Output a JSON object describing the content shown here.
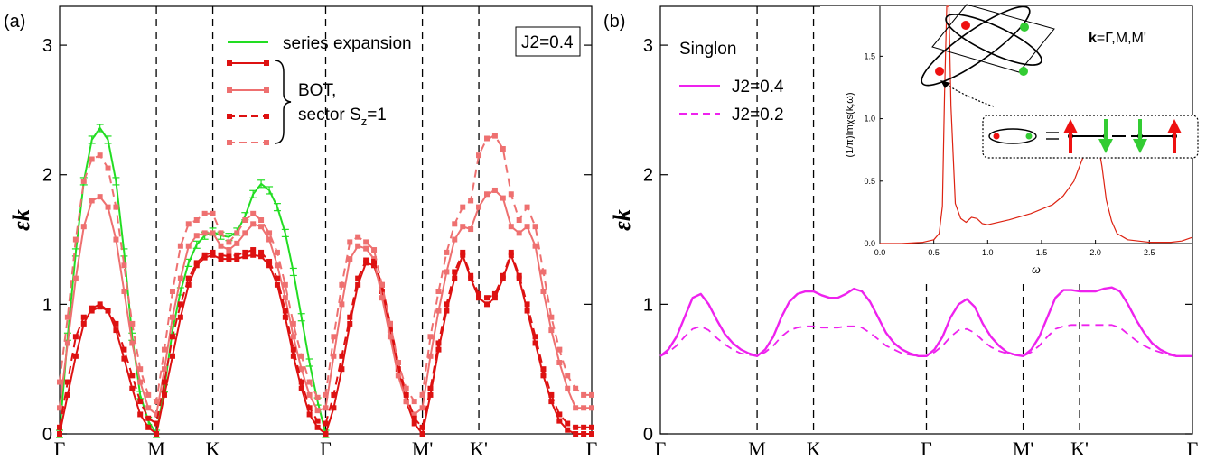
{
  "colors": {
    "green": "#22dd22",
    "red": "#dd1111",
    "pink": "#ee7070",
    "magenta": "#ee22ee",
    "inset_red": "#dd2211",
    "spin_red": "#ee1111",
    "spin_green": "#33cc33"
  },
  "chart_data": [
    {
      "type": "line",
      "panel_label": "(a)",
      "box_label": "J2=0.4",
      "ylabel": "εk",
      "ylim": [
        0,
        3.3
      ],
      "yticks": [
        "0",
        "1",
        "2",
        "3"
      ],
      "x_ticks": [
        "Γ",
        "M",
        "K",
        "Γ",
        "M'",
        "K'",
        "Γ"
      ],
      "x_tick_positions": [
        0,
        1,
        1.5833,
        2.75,
        3.75,
        4.3333,
        5.5
      ],
      "legend": {
        "series_expansion": "series expansion",
        "bot_line1": "BOT,",
        "bot_line2": "sector S",
        "bot_sub": "z",
        "bot_tail": "=1"
      },
      "series": [
        {
          "name": "series expansion",
          "x": [
            0,
            0.083,
            0.167,
            0.25,
            0.333,
            0.417,
            0.5,
            0.583,
            0.667,
            0.75,
            0.833,
            0.917,
            1,
            1.083,
            1.167,
            1.25,
            1.333,
            1.417,
            1.5,
            1.583,
            1.667,
            1.75,
            1.833,
            1.917,
            2,
            2.083,
            2.167,
            2.25,
            2.333,
            2.417,
            2.5,
            2.583,
            2.667,
            2.75
          ],
          "values": [
            0,
            0.75,
            1.4,
            1.95,
            2.27,
            2.36,
            2.27,
            1.95,
            1.4,
            0.75,
            0.3,
            0.1,
            0,
            0.35,
            0.8,
            1.1,
            1.32,
            1.46,
            1.53,
            1.56,
            1.53,
            1.52,
            1.56,
            1.68,
            1.85,
            1.93,
            1.88,
            1.75,
            1.55,
            1.25,
            0.9,
            0.55,
            0.25,
            0
          ]
        },
        {
          "name": "",
          "style": "solid-red",
          "x": [
            0,
            0.083,
            0.167,
            0.25,
            0.333,
            0.417,
            0.5,
            0.583,
            0.667,
            0.75,
            0.833,
            0.917,
            1,
            1.083,
            1.167,
            1.25,
            1.333,
            1.417,
            1.5,
            1.583,
            1.667,
            1.75,
            1.833,
            1.917,
            2,
            2.083,
            2.167,
            2.25,
            2.333,
            2.417,
            2.5,
            2.583,
            2.667,
            2.75,
            2.833,
            2.917,
            3,
            3.083,
            3.167,
            3.25,
            3.333,
            3.417,
            3.5,
            3.583,
            3.667,
            3.75,
            3.833,
            3.917,
            4,
            4.083,
            4.167,
            4.25,
            4.333,
            4.417,
            4.5,
            4.583,
            4.667,
            4.75,
            4.833,
            4.917,
            5,
            5.083,
            5.167,
            5.25,
            5.333,
            5.417,
            5.5
          ],
          "values": [
            0,
            0.3,
            0.6,
            0.85,
            0.97,
            1.0,
            0.95,
            0.8,
            0.58,
            0.35,
            0.15,
            0.05,
            0,
            0.3,
            0.6,
            0.9,
            1.15,
            1.3,
            1.36,
            1.38,
            1.35,
            1.35,
            1.35,
            1.37,
            1.38,
            1.37,
            1.3,
            1.15,
            0.9,
            0.6,
            0.35,
            0.15,
            0.05,
            0,
            0.2,
            0.5,
            0.85,
            1.15,
            1.32,
            1.3,
            1.1,
            0.8,
            0.5,
            0.25,
            0.08,
            0,
            0.3,
            0.65,
            0.95,
            1.2,
            1.38,
            1.2,
            1.05,
            1.0,
            1.05,
            1.2,
            1.38,
            1.2,
            0.95,
            0.7,
            0.45,
            0.25,
            0.1,
            0.03,
            0,
            0,
            0
          ]
        },
        {
          "name": "",
          "style": "solid-pink",
          "x": [
            0,
            0.083,
            0.167,
            0.25,
            0.333,
            0.417,
            0.5,
            0.583,
            0.667,
            0.75,
            0.833,
            0.917,
            1,
            1.083,
            1.167,
            1.25,
            1.333,
            1.417,
            1.5,
            1.583,
            1.667,
            1.75,
            1.833,
            1.917,
            2,
            2.083,
            2.167,
            2.25,
            2.333,
            2.417,
            2.5,
            2.583,
            2.667,
            2.75,
            2.833,
            2.917,
            3,
            3.083,
            3.167,
            3.25,
            3.333,
            3.417,
            3.5,
            3.583,
            3.667,
            3.75,
            3.833,
            3.917,
            4,
            4.083,
            4.167,
            4.25,
            4.333,
            4.417,
            4.5,
            4.583,
            4.667,
            4.75,
            4.833,
            4.917,
            5,
            5.083,
            5.167,
            5.25,
            5.333,
            5.417,
            5.5
          ],
          "values": [
            0.2,
            0.7,
            1.2,
            1.6,
            1.8,
            1.83,
            1.75,
            1.5,
            1.1,
            0.7,
            0.4,
            0.2,
            0.15,
            0.5,
            0.9,
            1.2,
            1.45,
            1.53,
            1.55,
            1.55,
            1.45,
            1.42,
            1.47,
            1.55,
            1.62,
            1.6,
            1.5,
            1.3,
            1.05,
            0.75,
            0.5,
            0.3,
            0.18,
            0.2,
            0.6,
            1.0,
            1.35,
            1.45,
            1.43,
            1.35,
            1.05,
            0.75,
            0.45,
            0.25,
            0.15,
            0.2,
            0.6,
            0.95,
            1.25,
            1.5,
            1.6,
            1.58,
            1.75,
            1.85,
            1.88,
            1.82,
            1.6,
            1.55,
            1.6,
            1.45,
            1.1,
            0.8,
            0.55,
            0.35,
            0.2,
            0.2,
            0.2
          ]
        },
        {
          "name": "",
          "style": "dashed-red",
          "x": [
            0,
            0.083,
            0.167,
            0.25,
            0.333,
            0.417,
            0.5,
            0.583,
            0.667,
            0.75,
            0.833,
            0.917,
            1,
            1.083,
            1.167,
            1.25,
            1.333,
            1.417,
            1.5,
            1.583,
            1.667,
            1.75,
            1.833,
            1.917,
            2,
            2.083,
            2.167,
            2.25,
            2.333,
            2.417,
            2.5,
            2.583,
            2.667,
            2.75,
            2.833,
            2.917,
            3,
            3.083,
            3.167,
            3.25,
            3.333,
            3.417,
            3.5,
            3.583,
            3.667,
            3.75,
            3.833,
            3.917,
            4,
            4.083,
            4.167,
            4.25,
            4.333,
            4.417,
            4.5,
            4.583,
            4.667,
            4.75,
            4.833,
            4.917,
            5,
            5.083,
            5.167,
            5.25,
            5.333,
            5.417,
            5.5
          ],
          "values": [
            0.05,
            0.4,
            0.75,
            0.9,
            0.95,
            0.98,
            0.95,
            0.85,
            0.65,
            0.45,
            0.25,
            0.12,
            0.08,
            0.4,
            0.75,
            1.0,
            1.2,
            1.32,
            1.38,
            1.4,
            1.38,
            1.37,
            1.38,
            1.4,
            1.42,
            1.4,
            1.33,
            1.2,
            0.95,
            0.65,
            0.4,
            0.2,
            0.1,
            0.08,
            0.3,
            0.6,
            0.9,
            1.2,
            1.34,
            1.33,
            1.15,
            0.85,
            0.55,
            0.3,
            0.12,
            0.05,
            0.35,
            0.7,
            1.0,
            1.25,
            1.4,
            1.22,
            1.08,
            1.05,
            1.08,
            1.22,
            1.4,
            1.22,
            1.0,
            0.75,
            0.5,
            0.3,
            0.15,
            0.08,
            0.05,
            0.05,
            0.05
          ]
        },
        {
          "name": "",
          "style": "dashed-pink",
          "x": [
            0,
            0.083,
            0.167,
            0.25,
            0.333,
            0.417,
            0.5,
            0.583,
            0.667,
            0.75,
            0.833,
            0.917,
            1,
            1.083,
            1.167,
            1.25,
            1.333,
            1.417,
            1.5,
            1.583,
            1.667,
            1.75,
            1.833,
            1.917,
            2,
            2.083,
            2.167,
            2.25,
            2.333,
            2.417,
            2.5,
            2.583,
            2.667,
            2.75,
            2.833,
            2.917,
            3,
            3.083,
            3.167,
            3.25,
            3.333,
            3.417,
            3.5,
            3.583,
            3.667,
            3.75,
            3.833,
            3.917,
            4,
            4.083,
            4.167,
            4.25,
            4.333,
            4.417,
            4.5,
            4.583,
            4.667,
            4.75,
            4.833,
            4.917,
            5,
            5.083,
            5.167,
            5.25,
            5.333,
            5.417,
            5.5
          ],
          "values": [
            0.4,
            0.9,
            1.5,
            1.95,
            2.12,
            2.15,
            2.05,
            1.75,
            1.3,
            0.85,
            0.5,
            0.3,
            0.25,
            0.65,
            1.1,
            1.45,
            1.62,
            1.65,
            1.7,
            1.7,
            1.55,
            1.48,
            1.55,
            1.65,
            1.7,
            1.65,
            1.55,
            1.4,
            1.15,
            0.85,
            0.6,
            0.4,
            0.28,
            0.3,
            0.75,
            1.15,
            1.48,
            1.52,
            1.48,
            1.42,
            1.15,
            0.85,
            0.55,
            0.35,
            0.25,
            0.3,
            0.75,
            1.1,
            1.4,
            1.62,
            1.75,
            1.8,
            2.15,
            2.28,
            2.3,
            2.2,
            1.85,
            1.65,
            1.75,
            1.6,
            1.25,
            0.9,
            0.65,
            0.45,
            0.35,
            0.3,
            0.3
          ]
        }
      ]
    },
    {
      "type": "line",
      "panel_label": "(b)",
      "ylabel": "εk",
      "ylim": [
        0,
        3.3
      ],
      "yticks": [
        "0",
        "1",
        "2",
        "3"
      ],
      "x_ticks": [
        "Γ",
        "M",
        "K",
        "Γ",
        "M'",
        "K'",
        "Γ"
      ],
      "x_tick_positions": [
        0,
        1,
        1.5833,
        2.75,
        3.75,
        4.3333,
        5.5
      ],
      "legend_title": "Singlon",
      "series": [
        {
          "name": "J2=0.4",
          "x": [
            0,
            0.083,
            0.167,
            0.25,
            0.333,
            0.417,
            0.5,
            0.583,
            0.667,
            0.75,
            0.833,
            0.917,
            1,
            1.083,
            1.167,
            1.25,
            1.333,
            1.417,
            1.5,
            1.583,
            1.667,
            1.75,
            1.833,
            1.917,
            2,
            2.083,
            2.167,
            2.25,
            2.333,
            2.417,
            2.5,
            2.583,
            2.667,
            2.75,
            2.833,
            2.917,
            3,
            3.083,
            3.167,
            3.25,
            3.333,
            3.417,
            3.5,
            3.583,
            3.667,
            3.75,
            3.833,
            3.917,
            4,
            4.083,
            4.167,
            4.25,
            4.333,
            4.417,
            4.5,
            4.583,
            4.667,
            4.75,
            4.833,
            4.917,
            5,
            5.083,
            5.167,
            5.25,
            5.333,
            5.417,
            5.5
          ],
          "values": [
            0.6,
            0.65,
            0.75,
            0.9,
            1.05,
            1.08,
            1.0,
            0.88,
            0.77,
            0.7,
            0.65,
            0.62,
            0.6,
            0.65,
            0.75,
            0.9,
            1.02,
            1.08,
            1.1,
            1.1,
            1.07,
            1.05,
            1.05,
            1.08,
            1.12,
            1.1,
            1.02,
            0.9,
            0.78,
            0.7,
            0.65,
            0.62,
            0.6,
            0.6,
            0.65,
            0.75,
            0.9,
            1.0,
            1.04,
            0.98,
            0.85,
            0.75,
            0.68,
            0.63,
            0.61,
            0.6,
            0.65,
            0.75,
            0.9,
            1.05,
            1.11,
            1.11,
            1.1,
            1.1,
            1.1,
            1.12,
            1.13,
            1.1,
            1.0,
            0.88,
            0.78,
            0.7,
            0.65,
            0.62,
            0.6,
            0.6,
            0.6
          ]
        },
        {
          "name": "J2=0.2",
          "x": [
            0,
            0.083,
            0.167,
            0.25,
            0.333,
            0.417,
            0.5,
            0.583,
            0.667,
            0.75,
            0.833,
            0.917,
            1,
            1.083,
            1.167,
            1.25,
            1.333,
            1.417,
            1.5,
            1.583,
            1.667,
            1.75,
            1.833,
            1.917,
            2,
            2.083,
            2.167,
            2.25,
            2.333,
            2.417,
            2.5,
            2.583,
            2.667,
            2.75,
            2.833,
            2.917,
            3,
            3.083,
            3.167,
            3.25,
            3.333,
            3.417,
            3.5,
            3.583,
            3.667,
            3.75,
            3.833,
            3.917,
            4,
            4.083,
            4.167,
            4.25,
            4.333,
            4.417,
            4.5,
            4.583,
            4.667,
            4.75,
            4.833,
            4.917,
            5,
            5.083,
            5.167,
            5.25,
            5.333,
            5.417,
            5.5
          ],
          "values": [
            0.6,
            0.63,
            0.68,
            0.75,
            0.81,
            0.83,
            0.8,
            0.74,
            0.69,
            0.65,
            0.62,
            0.61,
            0.6,
            0.63,
            0.68,
            0.75,
            0.8,
            0.82,
            0.83,
            0.83,
            0.82,
            0.82,
            0.82,
            0.83,
            0.83,
            0.82,
            0.78,
            0.73,
            0.68,
            0.65,
            0.62,
            0.61,
            0.6,
            0.6,
            0.63,
            0.68,
            0.75,
            0.8,
            0.81,
            0.78,
            0.72,
            0.67,
            0.64,
            0.62,
            0.61,
            0.6,
            0.63,
            0.68,
            0.75,
            0.81,
            0.83,
            0.84,
            0.84,
            0.84,
            0.84,
            0.84,
            0.84,
            0.82,
            0.77,
            0.72,
            0.68,
            0.65,
            0.63,
            0.61,
            0.6,
            0.6,
            0.6
          ]
        }
      ],
      "inset": {
        "type": "line",
        "ylabel": "(1/π)Imχs(k,ω)",
        "xlabel": "ω",
        "annotation_k": "k",
        "annotation_rest": "=Γ,M,M'",
        "xlim": [
          0,
          2.9
        ],
        "ylim": [
          0,
          1.9
        ],
        "xticks": [
          "0.0",
          "0.5",
          "1.0",
          "1.5",
          "2.0",
          "2.5"
        ],
        "yticks": [
          "0.0",
          "0.5",
          "1.0",
          "1.5"
        ],
        "x": [
          0,
          0.2,
          0.4,
          0.5,
          0.55,
          0.58,
          0.6,
          0.62,
          0.64,
          0.66,
          0.7,
          0.75,
          0.8,
          0.85,
          0.9,
          0.95,
          1.0,
          1.2,
          1.4,
          1.6,
          1.7,
          1.8,
          1.88,
          1.94,
          1.98,
          2.02,
          2.06,
          2.1,
          2.15,
          2.2,
          2.3,
          2.5,
          2.7,
          2.8,
          2.9
        ],
        "values": [
          0.0,
          0.0,
          0.01,
          0.03,
          0.08,
          0.3,
          1.2,
          1.9,
          1.9,
          1.1,
          0.32,
          0.2,
          0.17,
          0.21,
          0.2,
          0.16,
          0.15,
          0.19,
          0.24,
          0.31,
          0.38,
          0.5,
          0.68,
          0.84,
          0.88,
          0.82,
          0.62,
          0.35,
          0.18,
          0.08,
          0.03,
          0.01,
          0.01,
          0.02,
          0.05
        ]
      }
    }
  ]
}
